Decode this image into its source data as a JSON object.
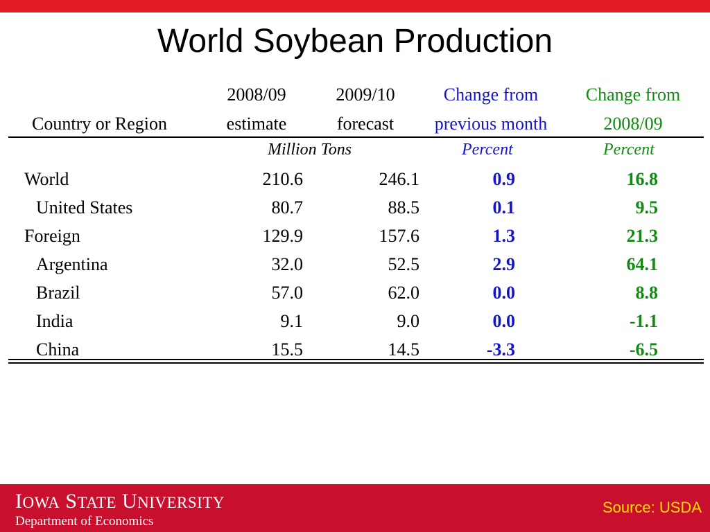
{
  "slide": {
    "title": "World Soybean Production"
  },
  "colors": {
    "top_bar": "#e11b22",
    "footer": "#c8102e",
    "month_change": "#1515c8",
    "year_change": "#138a13",
    "source_text": "#ffde00"
  },
  "table": {
    "headers": {
      "region": "Country or Region",
      "est_line1": "2008/09",
      "est_line2": "estimate",
      "fc_line1": "2009/10",
      "fc_line2": "forecast",
      "chm_line1": "Change from",
      "chm_line2": "previous month",
      "chy_line1": "Change from",
      "chy_line2": "2008/09"
    },
    "units": {
      "volume": "Million Tons",
      "month": "Percent",
      "year": "Percent"
    },
    "rows": [
      {
        "name": "World",
        "estimate": "210.6",
        "forecast": "246.1",
        "change_month": "0.9",
        "change_year": "16.8"
      },
      {
        "name": "United States",
        "estimate": "80.7",
        "forecast": "88.5",
        "change_month": "0.1",
        "change_year": "9.5"
      },
      {
        "name": "Foreign",
        "estimate": "129.9",
        "forecast": "157.6",
        "change_month": "1.3",
        "change_year": "21.3"
      },
      {
        "name": "Argentina",
        "estimate": "32.0",
        "forecast": "52.5",
        "change_month": "2.9",
        "change_year": "64.1"
      },
      {
        "name": "Brazil",
        "estimate": "57.0",
        "forecast": "62.0",
        "change_month": "0.0",
        "change_year": "8.8"
      },
      {
        "name": "India",
        "estimate": "9.1",
        "forecast": "9.0",
        "change_month": "0.0",
        "change_year": "-1.1"
      },
      {
        "name": "China",
        "estimate": "15.5",
        "forecast": "14.5",
        "change_month": "-3.3",
        "change_year": "-6.5"
      }
    ]
  },
  "footer": {
    "university": "Iowa State University",
    "department": "Department of Economics",
    "source": "Source: USDA"
  }
}
